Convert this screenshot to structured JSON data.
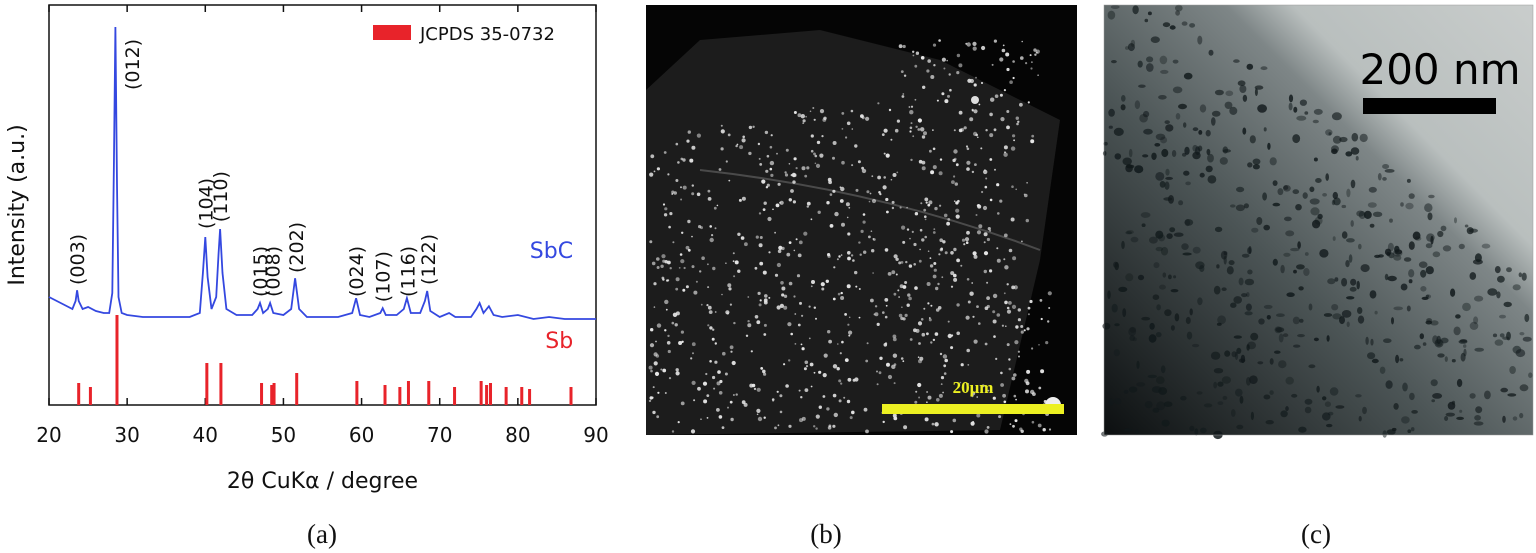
{
  "chart_data": {
    "type": "line",
    "xlabel": "2θ CuKα / degree",
    "ylabel": "Intensity (a.u.)",
    "xlim": [
      20,
      90
    ],
    "xticks": [
      20,
      30,
      40,
      50,
      60,
      70,
      80,
      90
    ],
    "ylim": [
      0,
      100
    ],
    "legend": "top-right",
    "series": [
      {
        "name": "SbC",
        "color": "#3448e0",
        "x": [
          20,
          21,
          22,
          23,
          23.4,
          23.6,
          23.8,
          24.3,
          25,
          26,
          27,
          27.7,
          28.1,
          28.3,
          28.5,
          28.7,
          28.9,
          29.3,
          30,
          32,
          34,
          36,
          38,
          39.3,
          39.7,
          40,
          40.3,
          40.8,
          41.4,
          41.7,
          41.9,
          42.2,
          42.7,
          44,
          46,
          46.7,
          47,
          47.4,
          48,
          48.3,
          48.7,
          50,
          51,
          51.5,
          52,
          53,
          55,
          57,
          58.8,
          59.3,
          59.8,
          61,
          62.4,
          62.7,
          63.1,
          64.5,
          65.4,
          65.8,
          66.3,
          67.5,
          68.1,
          68.4,
          68.8,
          70,
          71.2,
          72,
          74,
          74.7,
          75.1,
          75.6,
          76.3,
          76.9,
          78,
          80,
          82,
          84,
          86,
          88,
          90
        ],
        "values": [
          27,
          26,
          25,
          24,
          26,
          28.7,
          26,
          24,
          24.5,
          23.5,
          23,
          23,
          28,
          60,
          94.5,
          55,
          27,
          23,
          22.5,
          22,
          22,
          22,
          22,
          23,
          33,
          42,
          32,
          24,
          27,
          38,
          44,
          33,
          24,
          22.5,
          22.5,
          24,
          25.5,
          23,
          24,
          25.5,
          23,
          22.5,
          24,
          31.7,
          24,
          22,
          22,
          22,
          23,
          26.7,
          22.5,
          22,
          23,
          24.2,
          22.5,
          22.5,
          24,
          26.7,
          23,
          23,
          26,
          28.5,
          23.5,
          22,
          23,
          22,
          22,
          24,
          25.5,
          23,
          24.7,
          22.5,
          22,
          22.5,
          21.5,
          22,
          21.5,
          21.5,
          21.5
        ]
      },
      {
        "name": "JCPDS 35-0732",
        "color": "#e8232a",
        "x": [
          23.8,
          25.3,
          28.7,
          40.2,
          42.0,
          47.2,
          48.5,
          48.8,
          51.7,
          59.4,
          63.0,
          64.9,
          66.0,
          68.6,
          71.9,
          75.3,
          76.0,
          76.5,
          78.5,
          80.5,
          81.5,
          86.8
        ],
        "values": [
          5.5,
          4.5,
          22.5,
          10.5,
          10.5,
          5.5,
          5,
          5.5,
          8,
          6,
          5,
          4.5,
          6,
          6,
          4.5,
          6,
          5,
          5.5,
          4.5,
          4.5,
          4,
          4.5
        ]
      }
    ],
    "annotations": [
      {
        "text": "(003)",
        "x": 23.6,
        "y": 30
      },
      {
        "text": "(012)",
        "x": 30.6,
        "y": 78.75
      },
      {
        "text": "(104)",
        "x": 40,
        "y": 44
      },
      {
        "text": "(110)",
        "x": 41.9,
        "y": 45.7
      },
      {
        "text": "(015)",
        "x": 47,
        "y": 27
      },
      {
        "text": "(008)",
        "x": 48.6,
        "y": 27
      },
      {
        "text": "(202)",
        "x": 51.6,
        "y": 33
      },
      {
        "text": "(024)",
        "x": 59.3,
        "y": 27
      },
      {
        "text": "(107)",
        "x": 62.7,
        "y": 25.7
      },
      {
        "text": "(116)",
        "x": 65.9,
        "y": 27
      },
      {
        "text": "(122)",
        "x": 68.5,
        "y": 30
      },
      {
        "text": "SbC",
        "x": 84.3,
        "y": 36.8,
        "color": "#3448e0"
      },
      {
        "text": "Sb",
        "x": 85.3,
        "y": 14.3,
        "color": "#e8232a"
      }
    ]
  },
  "panels": {
    "a": {
      "label": "(a)"
    },
    "b": {
      "label": "(b)",
      "scale_bar": "20μm"
    },
    "c": {
      "label": "(c)",
      "scale_bar": "200 nm"
    }
  }
}
